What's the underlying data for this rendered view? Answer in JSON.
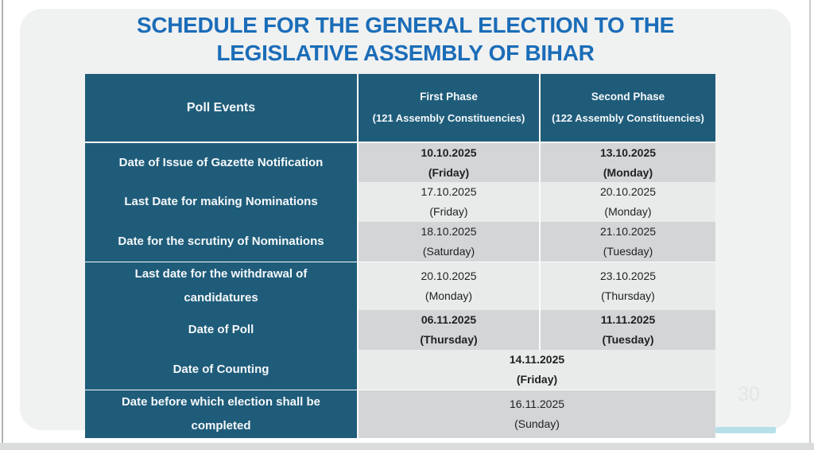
{
  "title": {
    "line1": "SCHEDULE FOR THE GENERAL ELECTION TO THE",
    "line2": "LEGISLATIVE ASSEMBLY OF BIHAR"
  },
  "page_number": "30",
  "table": {
    "header": {
      "poll_events": "Poll Events",
      "first_phase_title": "First Phase",
      "first_phase_subtitle": "(121 Assembly Constituencies)",
      "second_phase_title": "Second Phase",
      "second_phase_subtitle": "(122 Assembly Constituencies)"
    },
    "rows": [
      {
        "label": "Date of Issue of Gazette Notification",
        "first_phase_date": "10.10.2025",
        "first_phase_day": "(Friday)",
        "second_phase_date": "13.10.2025",
        "second_phase_day": "(Monday)"
      },
      {
        "label": "Last Date for making Nominations",
        "first_phase_date": "17.10.2025",
        "first_phase_day": "(Friday)",
        "second_phase_date": "20.10.2025",
        "second_phase_day": "(Monday)"
      },
      {
        "label": "Date for the scrutiny of Nominations",
        "first_phase_date": "18.10.2025",
        "first_phase_day": "(Saturday)",
        "second_phase_date": "21.10.2025",
        "second_phase_day": "(Tuesday)"
      },
      {
        "label": "Last date for the withdrawal of candidatures",
        "first_phase_date": "20.10.2025",
        "first_phase_day": "(Monday)",
        "second_phase_date": "23.10.2025",
        "second_phase_day": "(Thursday)"
      },
      {
        "label": "Date of Poll",
        "first_phase_date": "06.11.2025",
        "first_phase_day": "(Thursday)",
        "second_phase_date": "11.11.2025",
        "second_phase_day": "(Tuesday)"
      },
      {
        "label": "Date of Counting",
        "merged_date": "14.11.2025",
        "merged_day": "(Friday)"
      },
      {
        "label": "Date before which election shall be completed",
        "merged_date": "16.11.2025",
        "merged_day": "(Sunday)"
      }
    ]
  },
  "colors": {
    "title_blue": "#1b6db8",
    "header_teal": "#1f5c7a",
    "row_gray_dark": "#d3d5d7",
    "row_gray_light": "#e9ebeb",
    "accent_cyan": "#b7dfe9"
  }
}
